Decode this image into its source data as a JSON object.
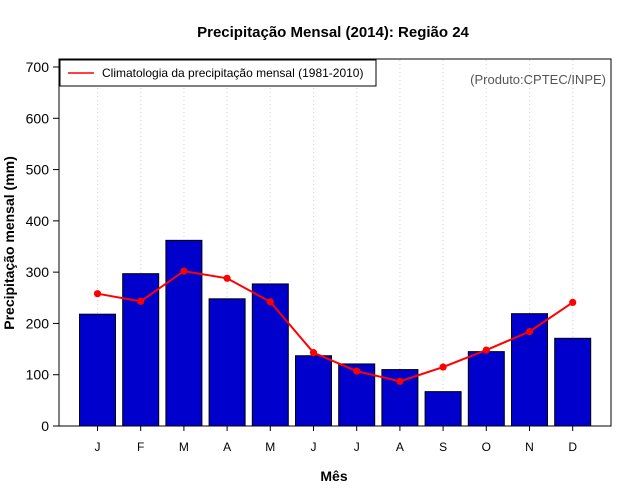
{
  "chart_data": {
    "type": "bar",
    "title": "Precipitação Mensal (2014): Região 24",
    "xlabel": "Mês",
    "ylabel": "Precipitação mensal (mm)",
    "ylim": [
      0,
      700
    ],
    "yticks": [
      0,
      100,
      200,
      300,
      400,
      500,
      600,
      700
    ],
    "categories": [
      "J",
      "F",
      "M",
      "A",
      "M",
      "J",
      "J",
      "A",
      "S",
      "O",
      "N",
      "D"
    ],
    "series": [
      {
        "name": "Precipitação mensal 2014",
        "type": "bar",
        "color": "#0000cd",
        "values": [
          218,
          297,
          362,
          248,
          277,
          137,
          121,
          110,
          67,
          145,
          219,
          171
        ]
      },
      {
        "name": "Climatologia da precipitação mensal (1981-2010)",
        "type": "line",
        "color": "#ff0000",
        "values": [
          258,
          243,
          302,
          288,
          242,
          143,
          107,
          87,
          115,
          148,
          184,
          241
        ]
      }
    ],
    "grid": "vertical dotted",
    "legend": {
      "position": "top-left",
      "entries": [
        "Climatologia da precipitação mensal (1981-2010)"
      ]
    },
    "annotation": "(Produto:CPTEC/INPE)"
  }
}
